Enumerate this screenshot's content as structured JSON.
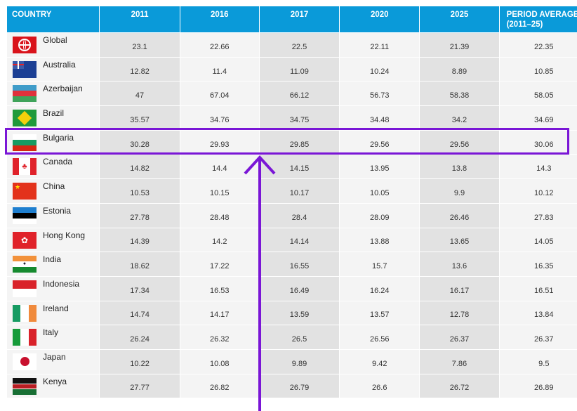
{
  "headers": [
    "COUNTRY",
    "2011",
    "2016",
    "2017",
    "2020",
    "2025",
    "PERIOD AVERAGE (2011–25)"
  ],
  "rows": [
    {
      "country": "Global",
      "flag": "globe-icon",
      "values": [
        "23.1",
        "22.66",
        "22.5",
        "22.11",
        "21.39",
        "22.35"
      ]
    },
    {
      "country": "Australia",
      "flag": "australia-flag-icon",
      "values": [
        "12.82",
        "11.4",
        "11.09",
        "10.24",
        "8.89",
        "10.85"
      ]
    },
    {
      "country": "Azerbaijan",
      "flag": "azerbaijan-flag-icon",
      "values": [
        "47",
        "67.04",
        "66.12",
        "56.73",
        "58.38",
        "58.05"
      ]
    },
    {
      "country": "Brazil",
      "flag": "brazil-flag-icon",
      "values": [
        "35.57",
        "34.76",
        "34.75",
        "34.48",
        "34.2",
        "34.69"
      ]
    },
    {
      "country": "Bulgaria",
      "flag": "bulgaria-flag-icon",
      "values": [
        "30.28",
        "29.93",
        "29.85",
        "29.56",
        "29.56",
        "30.06"
      ]
    },
    {
      "country": "Canada",
      "flag": "canada-flag-icon",
      "values": [
        "14.82",
        "14.4",
        "14.15",
        "13.95",
        "13.8",
        "14.3"
      ]
    },
    {
      "country": "China",
      "flag": "china-flag-icon",
      "values": [
        "10.53",
        "10.15",
        "10.17",
        "10.05",
        "9.9",
        "10.12"
      ]
    },
    {
      "country": "Estonia",
      "flag": "estonia-flag-icon",
      "values": [
        "27.78",
        "28.48",
        "28.4",
        "28.09",
        "26.46",
        "27.83"
      ]
    },
    {
      "country": "Hong Kong",
      "flag": "hong-kong-flag-icon",
      "values": [
        "14.39",
        "14.2",
        "14.14",
        "13.88",
        "13.65",
        "14.05"
      ]
    },
    {
      "country": "India",
      "flag": "india-flag-icon",
      "values": [
        "18.62",
        "17.22",
        "16.55",
        "15.7",
        "13.6",
        "16.35"
      ]
    },
    {
      "country": "Indonesia",
      "flag": "indonesia-flag-icon",
      "values": [
        "17.34",
        "16.53",
        "16.49",
        "16.24",
        "16.17",
        "16.51"
      ]
    },
    {
      "country": "Ireland",
      "flag": "ireland-flag-icon",
      "values": [
        "14.74",
        "14.17",
        "13.59",
        "13.57",
        "12.78",
        "13.84"
      ]
    },
    {
      "country": "Italy",
      "flag": "italy-flag-icon",
      "values": [
        "26.24",
        "26.32",
        "26.5",
        "26.56",
        "26.37",
        "26.37"
      ]
    },
    {
      "country": "Japan",
      "flag": "japan-flag-icon",
      "values": [
        "10.22",
        "10.08",
        "9.89",
        "9.42",
        "7.86",
        "9.5"
      ]
    },
    {
      "country": "Kenya",
      "flag": "kenya-flag-icon",
      "values": [
        "27.77",
        "26.82",
        "26.79",
        "26.6",
        "26.72",
        "26.89"
      ]
    }
  ],
  "highlighted_country": "Bulgaria",
  "colors": {
    "header": "#0a9ad9",
    "highlight": "#7a16d6"
  }
}
